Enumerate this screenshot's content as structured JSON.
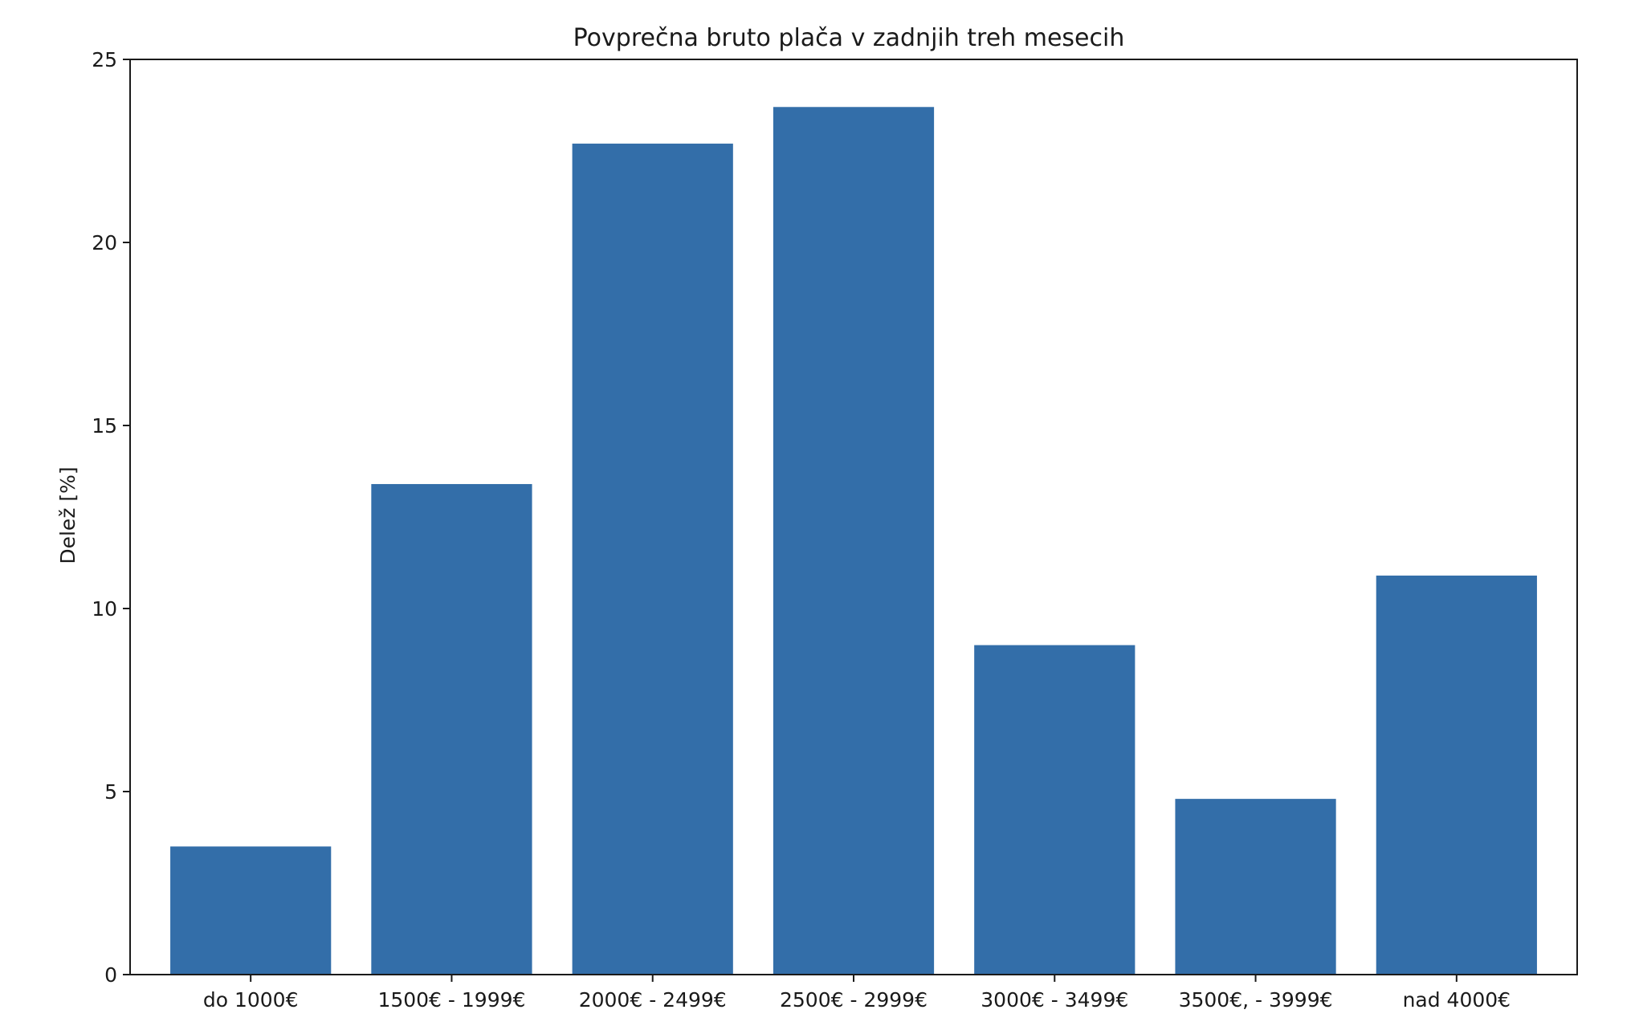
{
  "chart_data": {
    "type": "bar",
    "title": "Povprečna bruto plača v zadnjih treh mesecih",
    "xlabel": "",
    "ylabel": "Delež [%]",
    "categories": [
      "do 1000€",
      "1500€ - 1999€",
      "2000€ - 2499€",
      "2500€ - 2999€",
      "3000€ - 3499€",
      "3500€, - 3999€",
      "nad 4000€"
    ],
    "values": [
      3.5,
      13.4,
      22.7,
      23.7,
      9.0,
      4.8,
      10.9
    ],
    "ylim": [
      0,
      25
    ],
    "yticks": [
      "0",
      "5",
      "10",
      "15",
      "20",
      "25"
    ],
    "ytick_values": [
      0,
      5,
      10,
      15,
      20,
      25
    ],
    "grid": false,
    "bar_color": "#336ea9"
  }
}
